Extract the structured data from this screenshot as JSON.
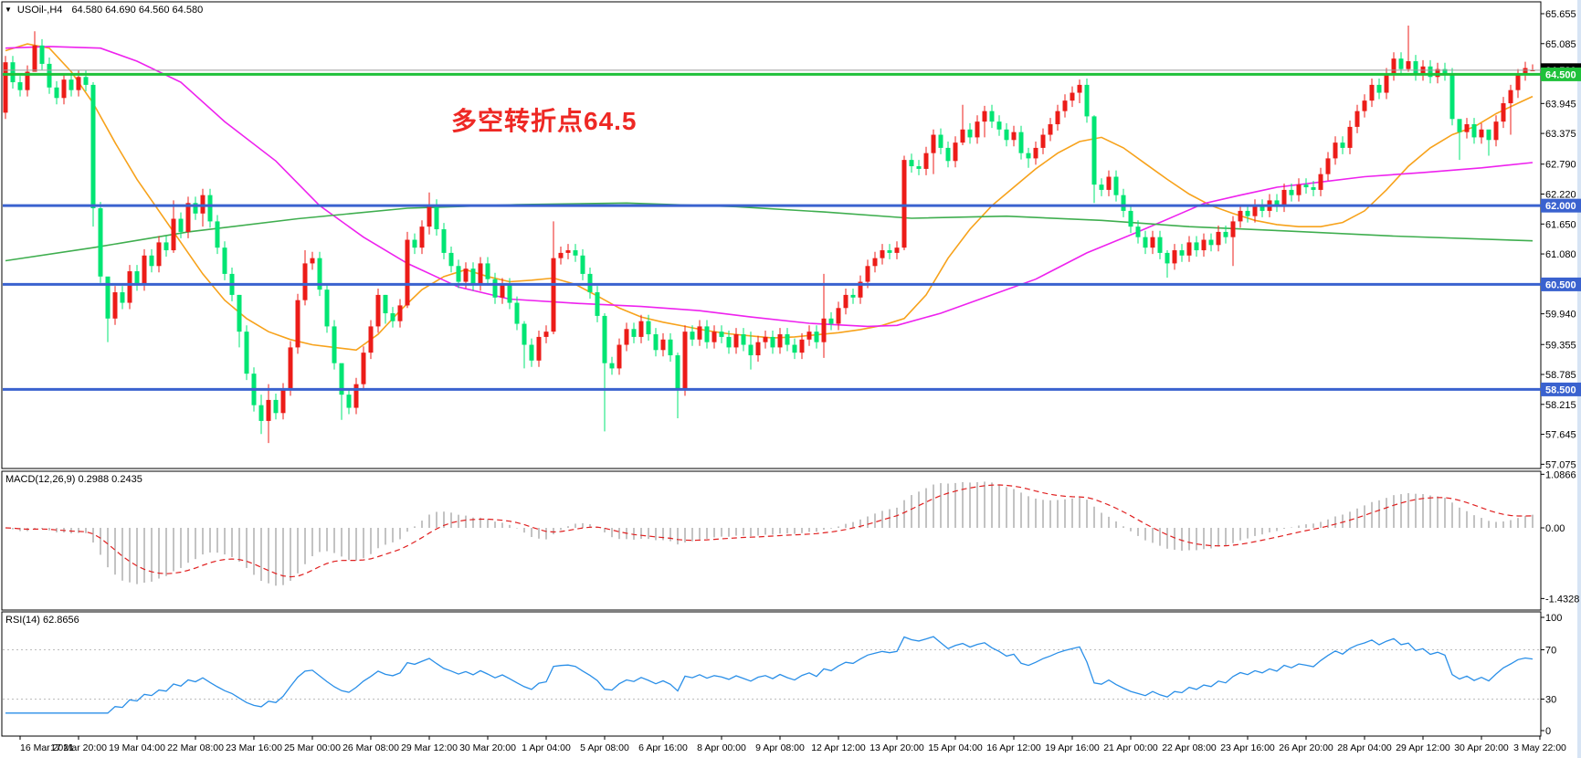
{
  "window": {
    "symbol_period": "USOil-,H4",
    "ohlc_readout": "64.580 64.690 64.560 64.580",
    "collapse_icon": "triangle-down"
  },
  "annotation": {
    "text": "多空转折点64.5",
    "color": "#ee2824"
  },
  "panels": {
    "macd": {
      "label": "MACD(12,26,9) 0.2988 0.2435",
      "axis_labels": [
        "1.0866",
        "0.00",
        "-1.4328"
      ]
    },
    "rsi": {
      "label": "RSI(14) 62.8656",
      "axis_labels": [
        "100",
        "70",
        "30",
        "0"
      ]
    }
  },
  "price_axis": {
    "ticks": [
      65.655,
      65.085,
      63.945,
      63.375,
      62.79,
      62.22,
      61.65,
      61.08,
      59.94,
      59.355,
      58.785,
      58.215,
      57.645,
      57.075
    ],
    "current_price_tag": {
      "value": "64.580",
      "bg": "#000000",
      "fg": "#ffffff"
    }
  },
  "time_axis": [
    "16 Mar 2021",
    "17 Mar 20:00",
    "19 Mar 04:00",
    "22 Mar 08:00",
    "23 Mar 16:00",
    "25 Mar 00:00",
    "26 Mar 08:00",
    "29 Mar 12:00",
    "30 Mar 20:00",
    "1 Apr 04:00",
    "5 Apr 08:00",
    "6 Apr 16:00",
    "8 Apr 00:00",
    "9 Apr 08:00",
    "12 Apr 12:00",
    "13 Apr 20:00",
    "15 Apr 04:00",
    "16 Apr 12:00",
    "19 Apr 16:00",
    "21 Apr 00:00",
    "22 Apr 08:00",
    "23 Apr 16:00",
    "26 Apr 20:00",
    "28 Apr 04:00",
    "29 Apr 12:00",
    "30 Apr 20:00",
    "3 May 22:00"
  ],
  "colors": {
    "background": "#ffffff",
    "border": "#000000",
    "candle_up": "#ec1c18",
    "candle_down": "#00e573",
    "ma_fast": "#f7a21b",
    "ma_medium": "#ee22ee",
    "ma_slow": "#3fae4f",
    "level_blue": "#3a62cf",
    "level_green": "#1fc13a",
    "current_price_line": "#9b9b9b",
    "macd_histogram": "#c3c3c3",
    "macd_signal": "#e02020",
    "rsi_line": "#2a8fe8",
    "rsi_levels": "#bdbdbd",
    "axis_text": "#000000"
  },
  "chart_data": {
    "type": "candlestick",
    "symbol": "USOil",
    "timeframe": "H4",
    "note_color_convention": "red = bullish, green = bearish",
    "first_open": 63.77,
    "last_bar": {
      "open": 64.58,
      "high": 64.69,
      "low": 64.56,
      "close": 64.58
    },
    "closes": [
      64.73,
      64.35,
      64.2,
      64.55,
      65.05,
      64.7,
      64.25,
      64.05,
      64.4,
      64.2,
      64.45,
      64.3,
      61.95,
      60.65,
      59.85,
      60.35,
      60.15,
      60.75,
      60.5,
      61.05,
      60.85,
      61.3,
      61.15,
      61.75,
      61.5,
      62.05,
      61.85,
      62.2,
      61.7,
      61.2,
      60.7,
      60.3,
      59.6,
      58.8,
      58.2,
      57.9,
      58.3,
      58.05,
      58.5,
      59.3,
      60.2,
      60.9,
      61.0,
      60.4,
      59.7,
      59.0,
      58.4,
      58.15,
      58.6,
      59.2,
      59.7,
      60.3,
      59.95,
      59.8,
      60.1,
      61.35,
      61.2,
      61.6,
      62.0,
      61.55,
      61.1,
      60.85,
      60.55,
      60.8,
      60.5,
      60.9,
      60.6,
      60.25,
      60.5,
      60.15,
      59.75,
      59.35,
      59.05,
      59.5,
      59.6,
      61.0,
      61.1,
      61.15,
      61.05,
      60.7,
      60.35,
      59.9,
      59.0,
      58.9,
      59.35,
      59.65,
      59.5,
      59.8,
      59.55,
      59.25,
      59.45,
      59.15,
      58.5,
      59.6,
      59.45,
      59.7,
      59.4,
      59.6,
      59.5,
      59.3,
      59.55,
      59.35,
      59.15,
      59.4,
      59.5,
      59.3,
      59.55,
      59.35,
      59.2,
      59.45,
      59.6,
      59.4,
      59.85,
      59.75,
      60.05,
      60.3,
      60.25,
      60.55,
      60.85,
      61.0,
      61.15,
      61.1,
      61.2,
      62.87,
      62.75,
      62.7,
      63.0,
      63.35,
      63.1,
      62.85,
      63.2,
      63.45,
      63.3,
      63.6,
      63.8,
      63.6,
      63.45,
      63.25,
      63.4,
      63.0,
      62.9,
      63.1,
      63.35,
      63.55,
      63.8,
      64.0,
      64.15,
      64.3,
      63.7,
      62.4,
      62.3,
      62.55,
      62.2,
      61.9,
      61.6,
      61.4,
      61.2,
      61.4,
      61.1,
      60.9,
      61.15,
      61.05,
      61.3,
      61.15,
      61.35,
      61.25,
      61.5,
      61.4,
      61.7,
      61.9,
      61.8,
      62.0,
      61.9,
      62.1,
      62.0,
      62.3,
      62.2,
      62.4,
      62.35,
      62.3,
      62.6,
      62.9,
      63.2,
      63.1,
      63.5,
      63.8,
      64.0,
      64.3,
      64.15,
      64.5,
      64.8,
      64.6,
      64.75,
      64.5,
      64.65,
      64.45,
      64.6,
      64.5,
      63.65,
      63.4,
      63.55,
      63.3,
      63.45,
      63.25,
      63.6,
      63.95,
      64.2,
      64.5,
      64.62,
      64.58
    ],
    "wicks": {
      "4": [
        65.32,
        64.55
      ],
      "12": [
        64.35,
        61.6
      ],
      "14": [
        60.4,
        59.4
      ],
      "23": [
        62.1,
        61.1
      ],
      "27": [
        62.32,
        61.6
      ],
      "32": [
        60.3,
        59.3
      ],
      "35": [
        58.4,
        57.65
      ],
      "36": [
        58.6,
        57.48
      ],
      "41": [
        61.15,
        60.1
      ],
      "46": [
        58.9,
        57.92
      ],
      "52": [
        60.3,
        59.75
      ],
      "55": [
        61.5,
        60.05
      ],
      "58": [
        62.25,
        61.45
      ],
      "71": [
        59.8,
        58.9
      ],
      "75": [
        61.7,
        59.55
      ],
      "82": [
        59.95,
        57.7
      ],
      "92": [
        59.2,
        57.95
      ],
      "102": [
        59.6,
        58.88
      ],
      "112": [
        60.7,
        59.1
      ],
      "123": [
        62.95,
        61.15
      ],
      "127": [
        63.45,
        62.6
      ],
      "131": [
        63.92,
        63.15
      ],
      "134": [
        63.9,
        63.3
      ],
      "140": [
        63.1,
        62.72
      ],
      "147": [
        64.4,
        63.95
      ],
      "149": [
        63.72,
        62.05
      ],
      "159": [
        61.15,
        60.63
      ],
      "168": [
        61.8,
        60.85
      ],
      "192": [
        65.43,
        64.55
      ],
      "199": [
        63.55,
        62.87
      ],
      "203": [
        63.4,
        62.95
      ],
      "206": [
        64.3,
        63.35
      ],
      "207": [
        64.6,
        64.05
      ]
    },
    "levels": [
      {
        "price": 64.5,
        "label": "64.500",
        "color": "#1fc13a",
        "thickness": 3
      },
      {
        "price": 62.0,
        "label": "62.000",
        "color": "#3a62cf",
        "thickness": 3
      },
      {
        "price": 60.5,
        "label": "60.500",
        "color": "#3a62cf",
        "thickness": 3
      },
      {
        "price": 58.5,
        "label": "58.500",
        "color": "#3a62cf",
        "thickness": 3
      }
    ],
    "current_price": 64.58,
    "moving_averages": [
      {
        "name": "fast-ma",
        "color": "#f7a21b",
        "points": [
          [
            0,
            64.95
          ],
          [
            3,
            65.08
          ],
          [
            6,
            65.0
          ],
          [
            9,
            64.55
          ],
          [
            12,
            63.95
          ],
          [
            15,
            63.2
          ],
          [
            18,
            62.5
          ],
          [
            21,
            61.9
          ],
          [
            24,
            61.3
          ],
          [
            27,
            60.7
          ],
          [
            30,
            60.2
          ],
          [
            33,
            59.85
          ],
          [
            36,
            59.6
          ],
          [
            39,
            59.45
          ],
          [
            42,
            59.35
          ],
          [
            45,
            59.3
          ],
          [
            48,
            59.25
          ],
          [
            51,
            59.55
          ],
          [
            54,
            60.0
          ],
          [
            57,
            60.4
          ],
          [
            60,
            60.65
          ],
          [
            63,
            60.78
          ],
          [
            66,
            60.65
          ],
          [
            69,
            60.55
          ],
          [
            72,
            60.58
          ],
          [
            75,
            60.62
          ],
          [
            78,
            60.5
          ],
          [
            81,
            60.28
          ],
          [
            84,
            60.05
          ],
          [
            87,
            59.88
          ],
          [
            90,
            59.78
          ],
          [
            93,
            59.7
          ],
          [
            96,
            59.62
          ],
          [
            99,
            59.56
          ],
          [
            102,
            59.52
          ],
          [
            105,
            59.48
          ],
          [
            108,
            59.5
          ],
          [
            111,
            59.54
          ],
          [
            114,
            59.58
          ],
          [
            117,
            59.64
          ],
          [
            120,
            59.72
          ],
          [
            123,
            59.85
          ],
          [
            126,
            60.3
          ],
          [
            129,
            61.0
          ],
          [
            132,
            61.55
          ],
          [
            135,
            62.0
          ],
          [
            138,
            62.35
          ],
          [
            141,
            62.7
          ],
          [
            144,
            63.0
          ],
          [
            147,
            63.22
          ],
          [
            150,
            63.3
          ],
          [
            153,
            63.1
          ],
          [
            156,
            62.8
          ],
          [
            159,
            62.5
          ],
          [
            162,
            62.22
          ],
          [
            165,
            62.0
          ],
          [
            168,
            61.85
          ],
          [
            171,
            61.72
          ],
          [
            174,
            61.64
          ],
          [
            177,
            61.6
          ],
          [
            180,
            61.6
          ],
          [
            183,
            61.68
          ],
          [
            186,
            61.9
          ],
          [
            189,
            62.3
          ],
          [
            192,
            62.75
          ],
          [
            195,
            63.1
          ],
          [
            198,
            63.35
          ],
          [
            201,
            63.5
          ],
          [
            204,
            63.75
          ],
          [
            207,
            63.95
          ],
          [
            209,
            64.08
          ]
        ]
      },
      {
        "name": "medium-ma",
        "color": "#ee22ee",
        "points": [
          [
            0,
            65.0
          ],
          [
            6,
            65.03
          ],
          [
            13,
            65.0
          ],
          [
            18,
            64.75
          ],
          [
            24,
            64.35
          ],
          [
            30,
            63.6
          ],
          [
            37,
            62.85
          ],
          [
            43,
            62.0
          ],
          [
            49,
            61.4
          ],
          [
            55,
            60.9
          ],
          [
            62,
            60.45
          ],
          [
            69,
            60.22
          ],
          [
            78,
            60.14
          ],
          [
            87,
            60.08
          ],
          [
            95,
            60.0
          ],
          [
            102,
            59.88
          ],
          [
            110,
            59.76
          ],
          [
            118,
            59.7
          ],
          [
            122,
            59.72
          ],
          [
            128,
            59.95
          ],
          [
            135,
            60.3
          ],
          [
            141,
            60.6
          ],
          [
            148,
            61.1
          ],
          [
            155,
            61.5
          ],
          [
            160,
            61.8
          ],
          [
            164,
            62.04
          ],
          [
            169,
            62.2
          ],
          [
            174,
            62.35
          ],
          [
            180,
            62.45
          ],
          [
            186,
            62.55
          ],
          [
            194,
            62.63
          ],
          [
            202,
            62.72
          ],
          [
            209,
            62.82
          ]
        ]
      },
      {
        "name": "slow-ma",
        "color": "#3fae4f",
        "points": [
          [
            0,
            60.95
          ],
          [
            12,
            61.2
          ],
          [
            25,
            61.5
          ],
          [
            40,
            61.75
          ],
          [
            55,
            61.95
          ],
          [
            70,
            62.02
          ],
          [
            85,
            62.05
          ],
          [
            100,
            61.98
          ],
          [
            112,
            61.88
          ],
          [
            124,
            61.76
          ],
          [
            137,
            61.8
          ],
          [
            150,
            61.72
          ],
          [
            162,
            61.6
          ],
          [
            175,
            61.52
          ],
          [
            190,
            61.42
          ],
          [
            209,
            61.33
          ]
        ]
      }
    ],
    "indicators": {
      "macd": {
        "params": [
          12,
          26,
          9
        ],
        "value": 0.2988,
        "signal_value": 0.2435,
        "scale_max": 1.0866,
        "scale_min": -1.4328
      },
      "rsi": {
        "period": 14,
        "value": 62.8656,
        "scale": [
          0,
          100
        ],
        "level_lines": [
          70,
          30
        ]
      }
    }
  }
}
